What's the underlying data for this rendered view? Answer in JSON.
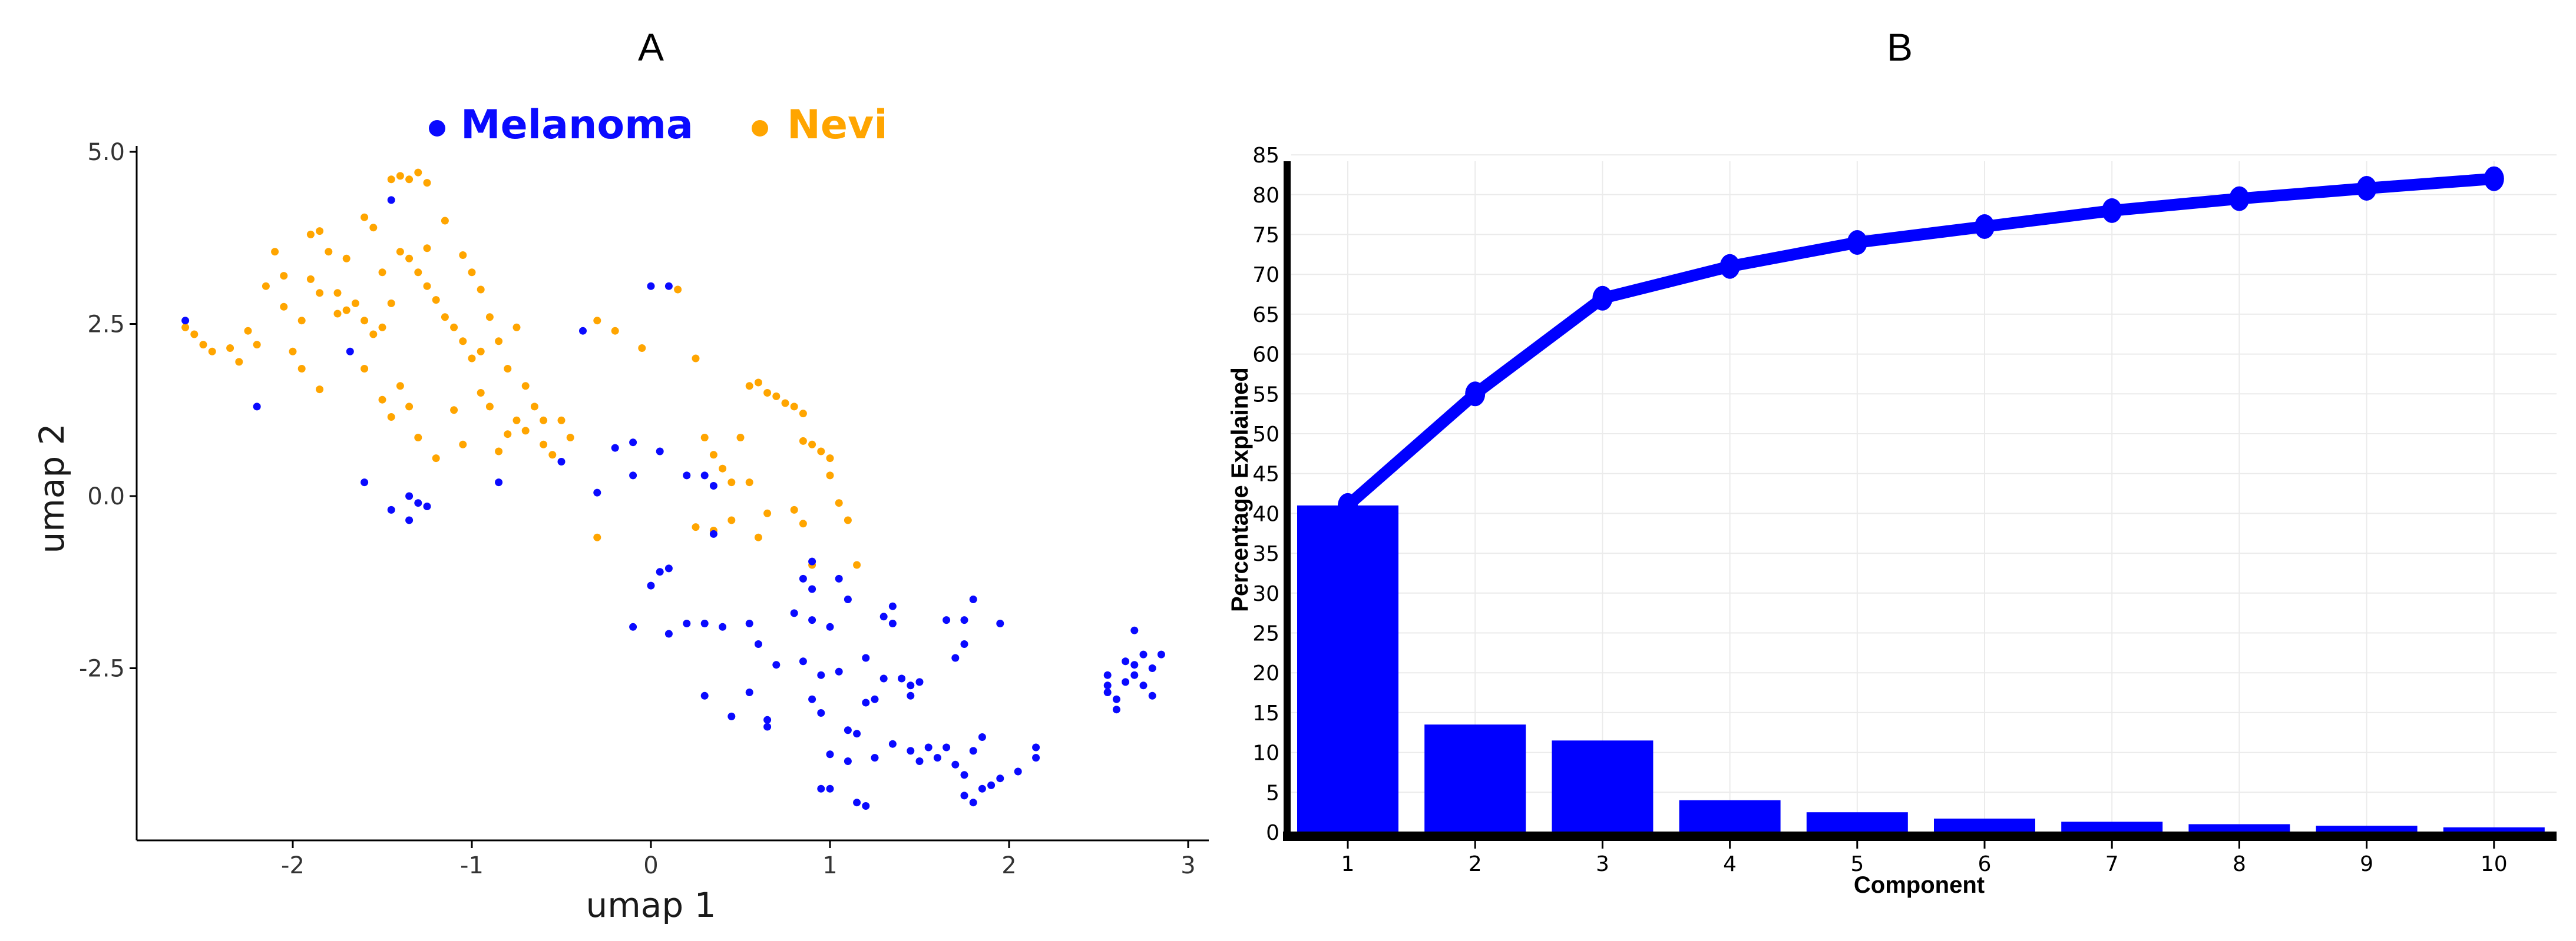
{
  "panels": [
    {
      "letter": "A"
    },
    {
      "letter": "B"
    }
  ],
  "colors": {
    "melanoma": "#0a0aff",
    "nevi": "#ffa500",
    "bar": "#0000ff",
    "line": "#0000ff",
    "axis": "#000000",
    "grid": "#ebebeb"
  },
  "chart_data": [
    {
      "panel": "A",
      "type": "scatter",
      "xlabel": "umap 1",
      "ylabel": "umap 2",
      "xlim": [
        -2.85,
        3.1
      ],
      "ylim": [
        -4.9,
        5.1
      ],
      "xticks": [
        -2,
        -1,
        0,
        1,
        2,
        3
      ],
      "xtick_labels": [
        "-2",
        "-1",
        "0",
        "1",
        "2",
        "3"
      ],
      "yticks": [
        -2.5,
        0,
        2.5,
        5
      ],
      "ytick_labels": [
        "-2.5",
        "0.0",
        "2.5",
        "5.0"
      ],
      "legend_position": "top",
      "series": [
        {
          "name": "Melanoma",
          "color": "#0a0aff",
          "points": [
            [
              -2.6,
              2.55
            ],
            [
              -2.2,
              1.3
            ],
            [
              -1.45,
              4.3
            ],
            [
              -1.68,
              2.1
            ],
            [
              -1.6,
              0.2
            ],
            [
              -1.45,
              -0.2
            ],
            [
              -1.35,
              0.0
            ],
            [
              -1.35,
              -0.35
            ],
            [
              -1.3,
              -0.1
            ],
            [
              -1.25,
              -0.15
            ],
            [
              -0.85,
              0.2
            ],
            [
              -0.38,
              2.4
            ],
            [
              -0.5,
              0.5
            ],
            [
              -0.1,
              0.78
            ],
            [
              0.0,
              3.05
            ],
            [
              0.1,
              3.05
            ],
            [
              -0.2,
              0.7
            ],
            [
              -0.3,
              0.05
            ],
            [
              -0.1,
              0.3
            ],
            [
              0.05,
              0.65
            ],
            [
              0.2,
              0.3
            ],
            [
              0.3,
              0.3
            ],
            [
              0.35,
              0.15
            ],
            [
              0.35,
              -0.55
            ],
            [
              0.1,
              -1.05
            ],
            [
              0.0,
              -1.3
            ],
            [
              0.05,
              -1.1
            ],
            [
              -0.1,
              -1.9
            ],
            [
              0.1,
              -2.0
            ],
            [
              0.2,
              -1.85
            ],
            [
              0.3,
              -1.85
            ],
            [
              0.4,
              -1.9
            ],
            [
              0.55,
              -1.85
            ],
            [
              0.6,
              -2.15
            ],
            [
              0.3,
              -2.9
            ],
            [
              0.45,
              -3.2
            ],
            [
              0.55,
              -2.85
            ],
            [
              0.65,
              -3.35
            ],
            [
              0.65,
              -3.25
            ],
            [
              0.7,
              -2.45
            ],
            [
              0.8,
              -1.7
            ],
            [
              0.9,
              -1.35
            ],
            [
              0.85,
              -1.2
            ],
            [
              0.9,
              -0.95
            ],
            [
              0.9,
              -1.8
            ],
            [
              1.0,
              -1.9
            ],
            [
              1.05,
              -1.2
            ],
            [
              1.1,
              -1.5
            ],
            [
              0.85,
              -2.4
            ],
            [
              0.9,
              -2.95
            ],
            [
              0.95,
              -3.15
            ],
            [
              0.95,
              -2.6
            ],
            [
              1.05,
              -2.55
            ],
            [
              1.1,
              -3.4
            ],
            [
              1.15,
              -3.45
            ],
            [
              1.2,
              -3.0
            ],
            [
              1.2,
              -2.35
            ],
            [
              1.25,
              -2.95
            ],
            [
              1.3,
              -2.65
            ],
            [
              1.3,
              -1.75
            ],
            [
              1.35,
              -1.85
            ],
            [
              1.35,
              -1.6
            ],
            [
              1.4,
              -2.65
            ],
            [
              1.45,
              -2.9
            ],
            [
              1.45,
              -2.75
            ],
            [
              1.5,
              -2.7
            ],
            [
              1.55,
              -3.65
            ],
            [
              1.5,
              -3.85
            ],
            [
              1.6,
              -3.8
            ],
            [
              1.65,
              -3.65
            ],
            [
              1.7,
              -3.9
            ],
            [
              1.75,
              -4.05
            ],
            [
              1.8,
              -3.7
            ],
            [
              1.85,
              -3.5
            ],
            [
              1.85,
              -4.25
            ],
            [
              1.8,
              -4.45
            ],
            [
              1.75,
              -4.35
            ],
            [
              1.7,
              -2.35
            ],
            [
              1.75,
              -2.15
            ],
            [
              1.65,
              -1.8
            ],
            [
              1.75,
              -1.8
            ],
            [
              1.8,
              -1.5
            ],
            [
              1.95,
              -1.85
            ],
            [
              1.9,
              -4.2
            ],
            [
              1.95,
              -4.1
            ],
            [
              2.05,
              -4.0
            ],
            [
              2.15,
              -3.65
            ],
            [
              2.15,
              -3.8
            ],
            [
              0.95,
              -4.25
            ],
            [
              1.0,
              -4.25
            ],
            [
              1.15,
              -4.45
            ],
            [
              1.2,
              -4.5
            ],
            [
              1.0,
              -3.75
            ],
            [
              1.1,
              -3.85
            ],
            [
              1.25,
              -3.8
            ],
            [
              1.35,
              -3.6
            ],
            [
              1.45,
              -3.7
            ],
            [
              2.55,
              -2.6
            ],
            [
              2.55,
              -2.85
            ],
            [
              2.6,
              -2.95
            ],
            [
              2.65,
              -2.7
            ],
            [
              2.7,
              -2.6
            ],
            [
              2.7,
              -2.45
            ],
            [
              2.75,
              -2.3
            ],
            [
              2.8,
              -2.5
            ],
            [
              2.85,
              -2.3
            ],
            [
              2.65,
              -2.4
            ],
            [
              2.7,
              -1.95
            ],
            [
              2.6,
              -3.1
            ],
            [
              2.75,
              -2.75
            ],
            [
              2.8,
              -2.9
            ],
            [
              2.55,
              -2.75
            ]
          ]
        },
        {
          "name": "Nevi",
          "color": "#ffa500",
          "points": [
            [
              -2.6,
              2.45
            ],
            [
              -2.55,
              2.35
            ],
            [
              -2.5,
              2.2
            ],
            [
              -2.45,
              2.1
            ],
            [
              -2.35,
              2.15
            ],
            [
              -2.3,
              1.95
            ],
            [
              -2.25,
              2.4
            ],
            [
              -2.2,
              2.2
            ],
            [
              -2.15,
              3.05
            ],
            [
              -2.1,
              3.55
            ],
            [
              -2.05,
              2.75
            ],
            [
              -1.95,
              2.55
            ],
            [
              -1.9,
              3.15
            ],
            [
              -1.85,
              3.85
            ],
            [
              -1.8,
              3.55
            ],
            [
              -1.75,
              2.95
            ],
            [
              -1.7,
              2.7
            ],
            [
              -1.65,
              2.8
            ],
            [
              -1.6,
              2.55
            ],
            [
              -1.55,
              2.35
            ],
            [
              -1.5,
              2.45
            ],
            [
              -1.45,
              2.8
            ],
            [
              -1.5,
              3.25
            ],
            [
              -1.4,
              3.55
            ],
            [
              -1.35,
              3.45
            ],
            [
              -1.3,
              3.25
            ],
            [
              -1.25,
              3.05
            ],
            [
              -1.2,
              2.85
            ],
            [
              -1.15,
              2.6
            ],
            [
              -1.1,
              2.45
            ],
            [
              -1.05,
              2.25
            ],
            [
              -1.0,
              2.0
            ],
            [
              -0.95,
              2.1
            ],
            [
              -0.9,
              2.6
            ],
            [
              -0.85,
              2.25
            ],
            [
              -0.8,
              1.85
            ],
            [
              -0.75,
              2.45
            ],
            [
              -0.7,
              1.6
            ],
            [
              -0.65,
              1.3
            ],
            [
              -0.6,
              1.1
            ],
            [
              -1.05,
              3.5
            ],
            [
              -1.0,
              3.25
            ],
            [
              -0.95,
              3.0
            ],
            [
              -1.15,
              4.0
            ],
            [
              -1.25,
              3.6
            ],
            [
              -1.45,
              4.6
            ],
            [
              -1.4,
              4.65
            ],
            [
              -1.35,
              4.6
            ],
            [
              -1.3,
              4.7
            ],
            [
              -1.25,
              4.55
            ],
            [
              -1.55,
              3.9
            ],
            [
              -1.6,
              4.05
            ],
            [
              -1.7,
              3.45
            ],
            [
              -1.75,
              2.65
            ],
            [
              -1.85,
              1.55
            ],
            [
              -1.95,
              1.85
            ],
            [
              -2.0,
              2.1
            ],
            [
              -1.6,
              1.85
            ],
            [
              -1.5,
              1.4
            ],
            [
              -1.45,
              1.15
            ],
            [
              -1.4,
              1.6
            ],
            [
              -1.35,
              1.3
            ],
            [
              -1.3,
              0.85
            ],
            [
              -1.2,
              0.55
            ],
            [
              -1.1,
              1.25
            ],
            [
              -1.05,
              0.75
            ],
            [
              -0.95,
              1.5
            ],
            [
              -0.9,
              1.3
            ],
            [
              -0.85,
              0.65
            ],
            [
              -0.8,
              0.9
            ],
            [
              -0.75,
              1.1
            ],
            [
              -0.7,
              0.95
            ],
            [
              -0.6,
              0.75
            ],
            [
              -0.55,
              0.6
            ],
            [
              -0.5,
              1.1
            ],
            [
              -0.45,
              0.85
            ],
            [
              -0.3,
              2.55
            ],
            [
              -0.2,
              2.4
            ],
            [
              -0.05,
              2.15
            ],
            [
              0.15,
              3.0
            ],
            [
              0.25,
              2.0
            ],
            [
              0.3,
              0.85
            ],
            [
              0.35,
              0.6
            ],
            [
              0.4,
              0.4
            ],
            [
              0.45,
              0.2
            ],
            [
              0.45,
              -0.35
            ],
            [
              0.35,
              -0.5
            ],
            [
              0.25,
              -0.45
            ],
            [
              -0.3,
              -0.6
            ],
            [
              0.5,
              0.85
            ],
            [
              0.55,
              1.6
            ],
            [
              0.6,
              1.65
            ],
            [
              0.65,
              1.5
            ],
            [
              0.7,
              1.45
            ],
            [
              0.75,
              1.35
            ],
            [
              0.8,
              1.3
            ],
            [
              0.85,
              1.2
            ],
            [
              0.85,
              0.8
            ],
            [
              0.9,
              0.75
            ],
            [
              0.95,
              0.65
            ],
            [
              1.0,
              0.55
            ],
            [
              1.0,
              0.3
            ],
            [
              1.05,
              -0.1
            ],
            [
              1.1,
              -0.35
            ],
            [
              0.9,
              -1.0
            ],
            [
              0.85,
              -0.4
            ],
            [
              0.8,
              -0.2
            ],
            [
              0.65,
              -0.25
            ],
            [
              0.6,
              -0.6
            ],
            [
              0.55,
              0.2
            ],
            [
              1.15,
              -1.0
            ],
            [
              -1.85,
              2.95
            ],
            [
              -2.05,
              3.2
            ],
            [
              -1.9,
              3.8
            ]
          ]
        }
      ]
    },
    {
      "panel": "B",
      "type": "bar",
      "xlabel": "Component",
      "ylabel": "Percentage Explained",
      "categories": [
        "1",
        "2",
        "3",
        "4",
        "5",
        "6",
        "7",
        "8",
        "9",
        "10"
      ],
      "ylim": [
        0,
        85
      ],
      "yticks": [
        0,
        5,
        10,
        15,
        20,
        25,
        30,
        35,
        40,
        45,
        50,
        55,
        60,
        65,
        70,
        75,
        80,
        85
      ],
      "ytick_labels": [
        "0",
        "5",
        "10",
        "15",
        "20",
        "25",
        "30",
        "35",
        "40",
        "45",
        "50",
        "55",
        "60",
        "65",
        "70",
        "75",
        "80",
        "85"
      ],
      "grid": true,
      "series": [
        {
          "type": "bar",
          "values": [
            41,
            13.5,
            11.5,
            4,
            2.5,
            1.7,
            1.3,
            1,
            0.8,
            0.6
          ]
        },
        {
          "type": "line",
          "values": [
            41,
            55,
            67,
            71,
            74,
            76,
            78,
            79.5,
            80.8,
            82
          ]
        }
      ]
    }
  ]
}
